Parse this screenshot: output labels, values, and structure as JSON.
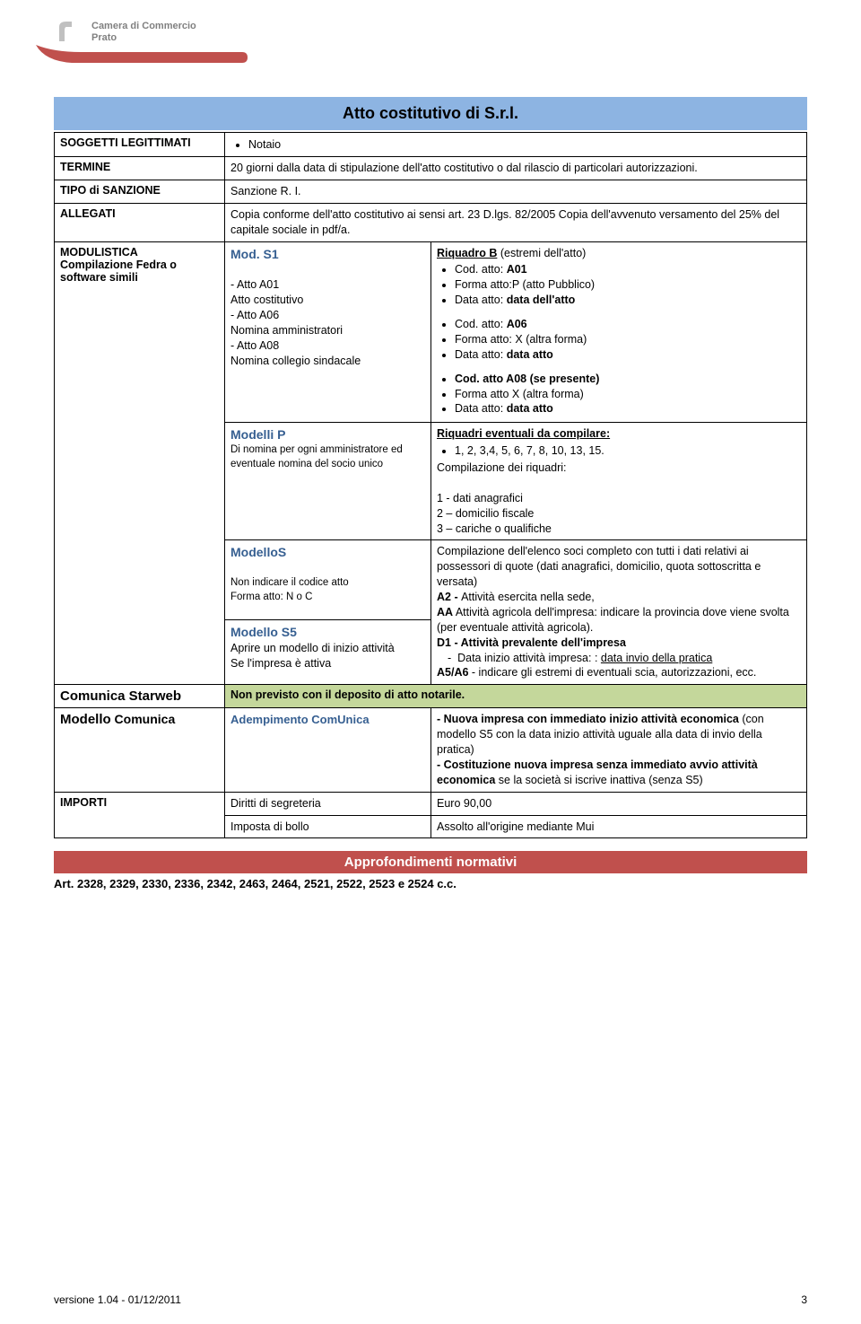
{
  "header": {
    "org_line1": "Camera di Commercio",
    "org_line2": "Prato"
  },
  "title": "Atto costitutivo di S.r.l.",
  "rows": {
    "soggetti": {
      "label": "SOGGETTI LEGITTIMATI",
      "value": "Notaio"
    },
    "termine": {
      "label": "TERMINE",
      "value": "20 giorni dalla data di stipulazione dell'atto costitutivo o dal rilascio di particolari autorizzazioni."
    },
    "tipo_sanzione": {
      "label": "TIPO di SANZIONE",
      "value": "Sanzione R. I."
    },
    "allegati": {
      "label": "ALLEGATI",
      "value": "Copia  conforme dell'atto costitutivo ai sensi art. 23 D.lgs. 82/2005 Copia dell'avvenuto versamento del 25% del capitale sociale in pdf/a."
    },
    "modulistica": {
      "label_line1": "MODULISTICA",
      "label_line2": "Compilazione Fedra o software simili",
      "mods1_title": "Mod. S1",
      "mods1_items": "- Atto A01\nAtto costitutivo\n- Atto A06\nNomina amministratori\n- Atto A08\nNomina collegio sindacale",
      "riquadroB_title": "Riquadro B",
      "riquadroB_suffix": " (estremi dell'atto)",
      "riquadroB_b1_label": "Cod. atto: ",
      "riquadroB_b1_val": "A01",
      "riquadroB_b2": "Forma atto:P (atto Pubblico)",
      "riquadroB_b3_label": "Data atto: ",
      "riquadroB_b3_val": "data dell'atto",
      "riquadroB_b4_label": "Cod. atto: ",
      "riquadroB_b4_val": "A06",
      "riquadroB_b5": "Forma atto: X (altra forma)",
      "riquadroB_b6_label": "Data atto: ",
      "riquadroB_b6_val": "data atto",
      "riquadroB_b7": "Cod. atto A08 (se presente)",
      "riquadroB_b8": "Forma atto X (altra forma)",
      "riquadroB_b9_label": "Data atto: ",
      "riquadroB_b9_val": "data atto",
      "modelliP_title": "Modelli P",
      "modelliP_desc": "Di nomina per ogni amministratore ed eventuale nomina del socio unico",
      "riquadri_eventuali_title": "Riquadri eventuali da compilare:",
      "riquadri_nums": "1, 2, 3,4, 5, 6, 7, 8, 10, 13, 15.",
      "comp_riquadri": "Compilazione dei riquadri:",
      "comp_r1": "1 - dati anagrafici",
      "comp_r2": "2 – domicilio fiscale",
      "comp_r3": "3 – cariche o qualifiche",
      "modelloS_title": "ModelloS",
      "modelloS_line1": "Non indicare il codice atto",
      "modelloS_line2": "Forma atto: N o C",
      "modelloS5_title": "Modello S5",
      "modelloS5_line1": "Aprire un modello di inizio attività",
      "modelloS5_line2": "Se l'impresa è attiva",
      "comp_elenco": "Compilazione dell'elenco soci completo con tutti i dati relativi ai possessori di quote (dati anagrafici, domicilio, quota sottoscritta e versata)",
      "a2_bold": "A2 - ",
      "a2_text": "Attività esercita nella sede,",
      "aa_bold": "AA",
      "aa_text": " Attività agricola dell'impresa: indicare la provincia dove viene svolta (per eventuale attività agricola).",
      "d1_bold": "D1 - Attività prevalente dell'impresa",
      "d1_sub": "Data inizio attività impresa: : ",
      "d1_sub_u": "data invio della pratica",
      "a5a6_bold": "A5/A6",
      "a5a6_text": " -  indicare gli estremi di eventuali scia, autorizzazioni, ecc."
    },
    "starweb": {
      "label": "Comunica Starweb",
      "value": "Non previsto con il deposito di atto notarile."
    },
    "modello_comunica": {
      "label": "Modello Comunica",
      "adem_title": "Adempimento ComUnica",
      "adem_b1": "- Nuova impresa con immediato inizio attività economica",
      "adem_b1_rest": " (con modello S5 con la data inizio attività uguale alla data di invio della pratica)",
      "adem_b2": "- Costituzione nuova impresa senza immediato avvio attività economica",
      "adem_b2_rest": " se la società si iscrive inattiva (senza S5)"
    },
    "importi": {
      "label": "IMPORTI",
      "diritti_label": "Diritti di segreteria",
      "diritti_val": "Euro 90,00",
      "imposta_label": "Imposta di bollo",
      "imposta_val": "Assolto all'origine mediante Mui"
    }
  },
  "approfondimenti": {
    "title": "Approfondimenti normativi",
    "art": "Art. 2328, 2329, 2330, 2336, 2342, 2463, 2464, 2521, 2522, 2523 e 2524 c.c."
  },
  "footer": {
    "version": "versione 1.04  - 01/12/2011",
    "page": "3"
  },
  "colors": {
    "banner_bg": "#8db4e2",
    "green_bg": "#c4d79b",
    "red_bg": "#c0504d",
    "blue_text": "#365f91"
  }
}
